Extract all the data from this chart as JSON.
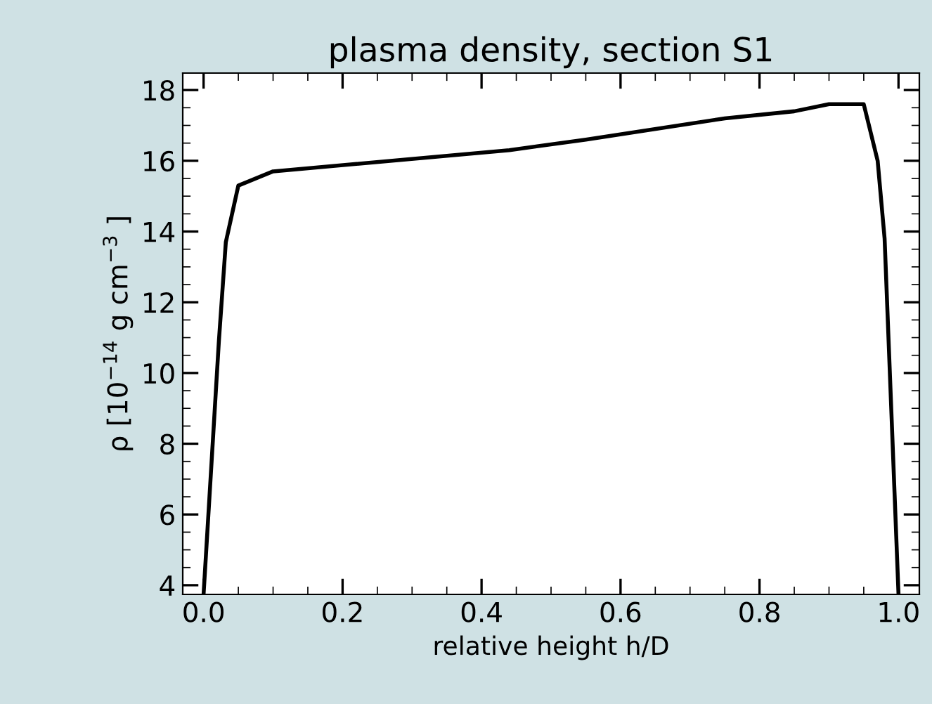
{
  "chart_data": {
    "type": "line",
    "title": "plasma density, section S1",
    "xlabel": "relative height h/D",
    "ylabel": "ρ [10$^{−14}$ g cm$^{−3}$ ]",
    "x": [
      0.0,
      0.022,
      0.032,
      0.05,
      0.1,
      0.44,
      0.55,
      0.75,
      0.85,
      0.9,
      0.95,
      0.97,
      0.98,
      1.0
    ],
    "series": [
      {
        "color": "#000000",
        "values": [
          3.75,
          10.9,
          13.7,
          15.3,
          15.7,
          16.3,
          16.6,
          17.2,
          17.4,
          17.6,
          17.6,
          16.0,
          13.8,
          3.75
        ]
      }
    ],
    "xlim": [
      -0.03,
      1.03
    ],
    "ylim": [
      3.74,
      18.48
    ],
    "xticks": [
      {
        "value": 0.0,
        "label": "0.0"
      },
      {
        "value": 0.2,
        "label": "0.2"
      },
      {
        "value": 0.4,
        "label": "0.4"
      },
      {
        "value": 0.6,
        "label": "0.6"
      },
      {
        "value": 0.8,
        "label": "0.8"
      },
      {
        "value": 1.0,
        "label": "1.0"
      }
    ],
    "yticks": [
      4,
      6,
      8,
      10,
      12,
      14,
      16,
      18
    ],
    "grid": false,
    "marker": "none",
    "line_style": "solid"
  }
}
